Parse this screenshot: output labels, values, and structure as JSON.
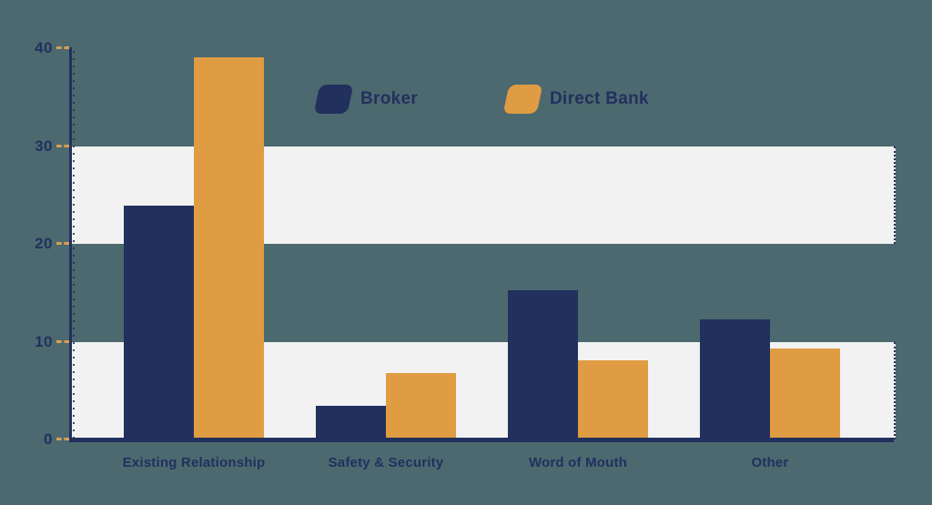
{
  "colors": {
    "background": "#4d6970",
    "navy": "#22305e",
    "orange": "#e09c43",
    "band": "#f2f2f3",
    "axis": "#22305e",
    "tick_dash": "#d9a055",
    "label_text": "#22305e"
  },
  "legend": {
    "items": [
      {
        "label": "Broker",
        "color": "#22305e"
      },
      {
        "label": "Direct Bank",
        "color": "#e09c43"
      }
    ]
  },
  "chart_data": {
    "type": "bar",
    "title": "",
    "xlabel": "",
    "ylabel": "",
    "categories": [
      "Existing Relationship",
      "Safety & Security",
      "Word of Mouth",
      "Other"
    ],
    "series": [
      {
        "name": "Broker",
        "color": "#22305e",
        "values": [
          23.9,
          3.4,
          15.3,
          12.3
        ]
      },
      {
        "name": "Direct Bank",
        "color": "#e09c43",
        "values": [
          39.1,
          6.8,
          8.1,
          9.3
        ]
      }
    ],
    "ylim": [
      0,
      40
    ],
    "yticks": [
      0,
      10,
      20,
      30,
      40
    ],
    "highlight_bands": [
      [
        0,
        10
      ],
      [
        20,
        30
      ]
    ],
    "legend_position": "top-center",
    "grid": "alternating-horizontal-bands"
  }
}
